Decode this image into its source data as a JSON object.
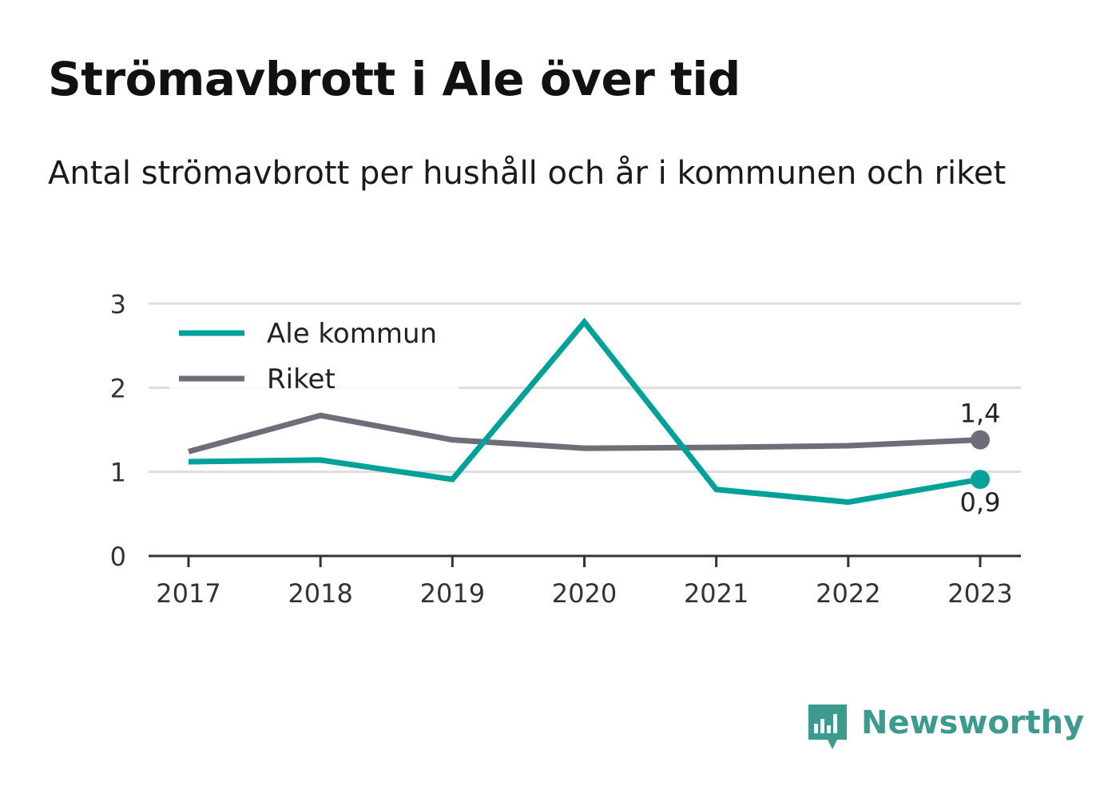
{
  "title": "Strömavbrott i Ale över tid",
  "subtitle": "Antal strömavbrott per hushåll och år i kommunen och riket",
  "brand": "Newsworthy",
  "chart_data": {
    "type": "line",
    "x": [
      "2017",
      "2018",
      "2019",
      "2020",
      "2021",
      "2022",
      "2023"
    ],
    "ylim": [
      0,
      3
    ],
    "yticks": [
      "0",
      "1",
      "2",
      "3"
    ],
    "grid": true,
    "legend_position": "top-left",
    "series": [
      {
        "name": "Ale kommun",
        "color": "#00a19a",
        "values": [
          1.12,
          1.14,
          0.91,
          2.78,
          0.79,
          0.64,
          0.91
        ],
        "end_label": "0,9",
        "end_label_position": "below"
      },
      {
        "name": "Riket",
        "color": "#6e6e78",
        "values": [
          1.24,
          1.67,
          1.38,
          1.28,
          1.29,
          1.31,
          1.38
        ],
        "end_label": "1,4",
        "end_label_position": "above"
      }
    ],
    "colors": {
      "grid": "#dddddd",
      "axis": "#333333",
      "brand": "#3d9a8f"
    }
  }
}
